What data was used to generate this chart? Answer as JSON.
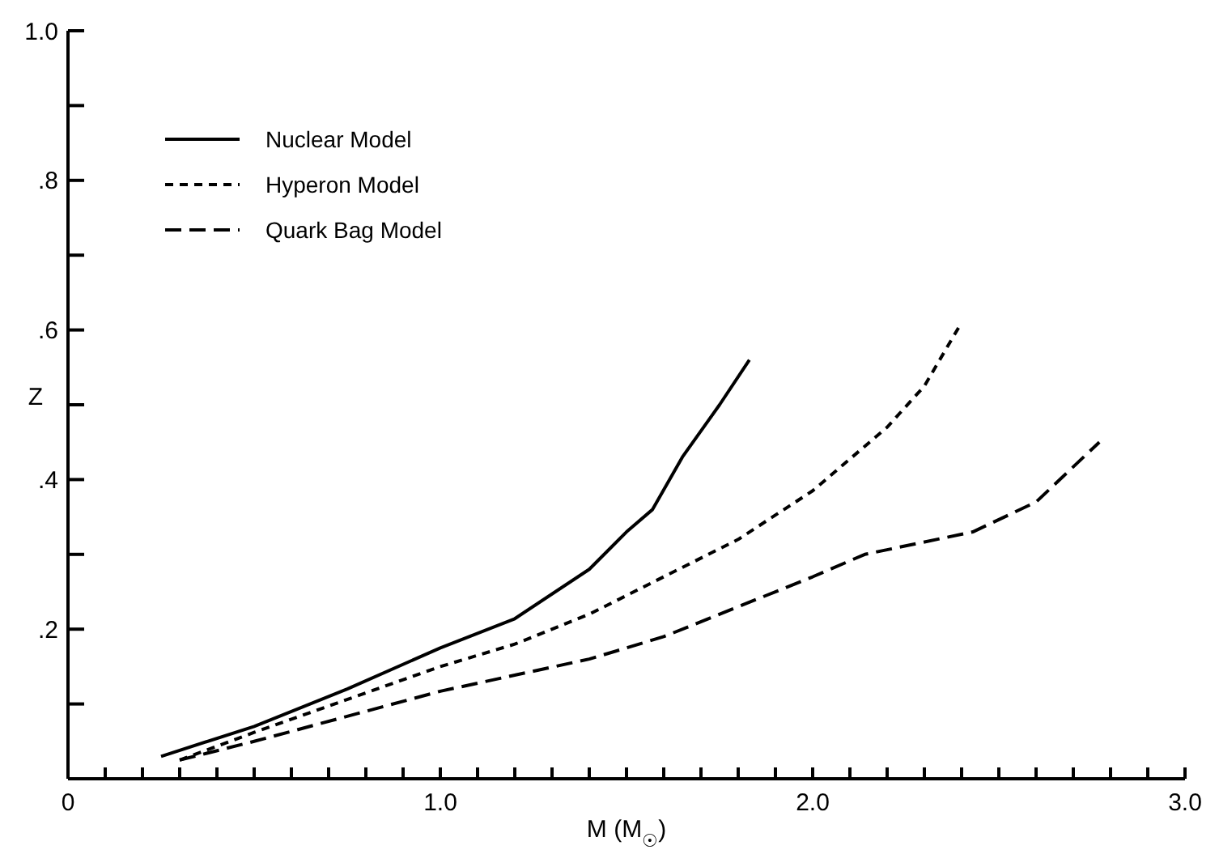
{
  "chart_data": {
    "type": "line",
    "xlabel": "M (M$_{☉}$)",
    "ylabel": "Z",
    "xlim": [
      0,
      3
    ],
    "ylim": [
      0,
      1
    ],
    "xticks": [
      {
        "value": 0,
        "label": "0"
      },
      {
        "value": 0.1,
        "label": null
      },
      {
        "value": 0.2,
        "label": null
      },
      {
        "value": 0.3,
        "label": null
      },
      {
        "value": 0.4,
        "label": null
      },
      {
        "value": 0.5,
        "label": null
      },
      {
        "value": 0.6,
        "label": null
      },
      {
        "value": 0.7,
        "label": null
      },
      {
        "value": 0.8,
        "label": null
      },
      {
        "value": 0.9,
        "label": null
      },
      {
        "value": 1,
        "label": "1.0"
      },
      {
        "value": 1.1,
        "label": null
      },
      {
        "value": 1.2,
        "label": null
      },
      {
        "value": 1.3,
        "label": null
      },
      {
        "value": 1.4,
        "label": null
      },
      {
        "value": 1.5,
        "label": null
      },
      {
        "value": 1.6,
        "label": null
      },
      {
        "value": 1.7,
        "label": null
      },
      {
        "value": 1.8,
        "label": null
      },
      {
        "value": 1.9,
        "label": null
      },
      {
        "value": 2,
        "label": "2.0"
      },
      {
        "value": 2.1,
        "label": null
      },
      {
        "value": 2.2,
        "label": null
      },
      {
        "value": 2.3,
        "label": null
      },
      {
        "value": 2.4,
        "label": null
      },
      {
        "value": 2.5,
        "label": null
      },
      {
        "value": 2.6,
        "label": null
      },
      {
        "value": 2.7,
        "label": null
      },
      {
        "value": 2.8,
        "label": null
      },
      {
        "value": 2.9,
        "label": null
      },
      {
        "value": 3,
        "label": "3.0"
      }
    ],
    "yticks": [
      {
        "value": 0,
        "label": null
      },
      {
        "value": 0.1,
        "label": null
      },
      {
        "value": 0.2,
        "label": ".2"
      },
      {
        "value": 0.3,
        "label": null
      },
      {
        "value": 0.4,
        "label": ".4"
      },
      {
        "value": 0.5,
        "label": null
      },
      {
        "value": 0.6,
        "label": ".6"
      },
      {
        "value": 0.7,
        "label": null
      },
      {
        "value": 0.8,
        "label": ".8"
      },
      {
        "value": 0.9,
        "label": null
      },
      {
        "value": 1,
        "label": "1.0"
      }
    ],
    "grid": false,
    "legend": "top left",
    "marker": "none",
    "series": [
      {
        "name": "Nuclear Model",
        "color": "#000000",
        "line_style": "solid",
        "x": [
          0.25,
          0.5,
          0.75,
          1.0,
          1.2,
          1.4,
          1.5,
          1.57,
          1.65,
          1.75,
          1.83
        ],
        "values": [
          0.03,
          0.07,
          0.12,
          0.175,
          0.214,
          0.28,
          0.33,
          0.36,
          0.43,
          0.5,
          0.56
        ]
      },
      {
        "name": "Hyperon Model",
        "color": "#000000",
        "line_style": "dotted",
        "x": [
          0.3,
          0.5,
          1.0,
          1.2,
          1.4,
          1.6,
          1.8,
          2.0,
          2.2,
          2.3,
          2.4
        ],
        "values": [
          0.025,
          0.062,
          0.15,
          0.18,
          0.22,
          0.27,
          0.32,
          0.385,
          0.47,
          0.525,
          0.61
        ]
      },
      {
        "name": "Quark Bag Model",
        "color": "#000000",
        "line_style": "dashed",
        "x": [
          0.3,
          0.5,
          1.0,
          1.4,
          1.6,
          1.8,
          2.0,
          2.14,
          2.43,
          2.6,
          2.77
        ],
        "values": [
          0.025,
          0.05,
          0.117,
          0.16,
          0.19,
          0.23,
          0.27,
          0.3,
          0.33,
          0.37,
          0.45
        ]
      }
    ]
  }
}
